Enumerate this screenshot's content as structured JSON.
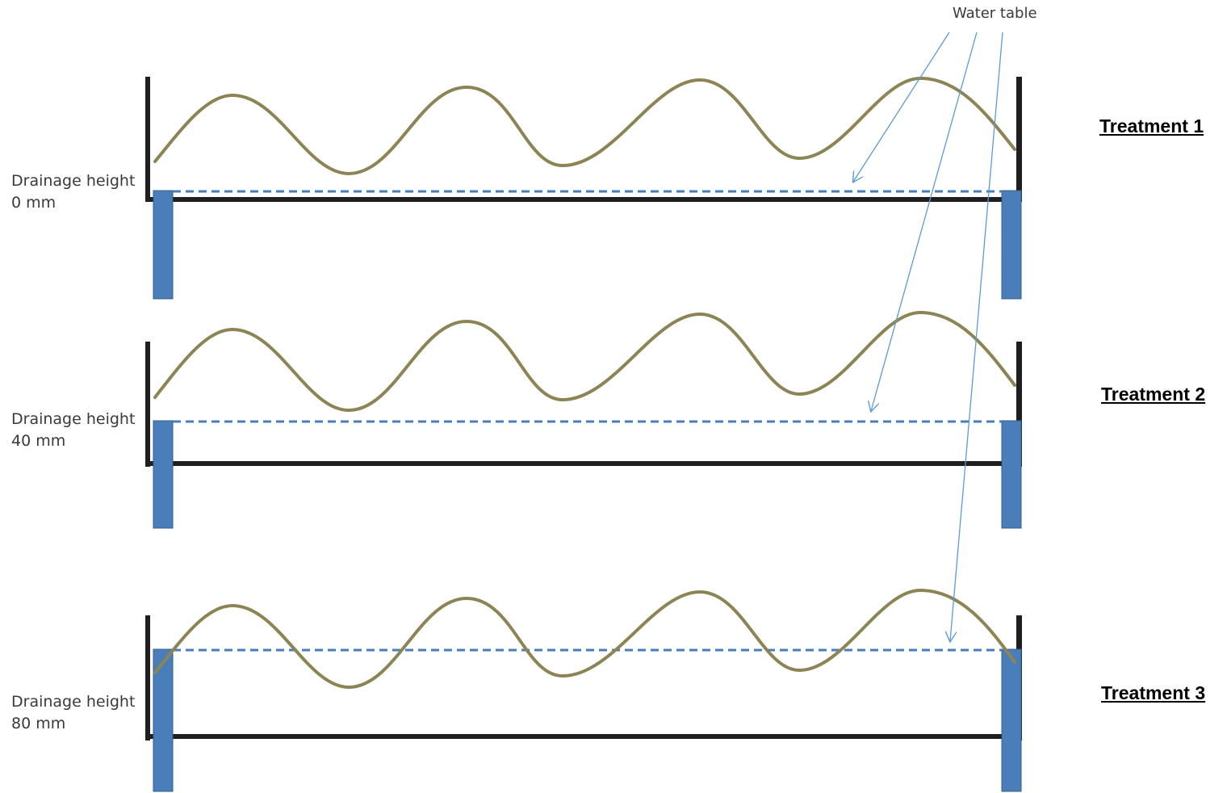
{
  "annotation": {
    "label": "Water table"
  },
  "treatments": [
    {
      "name": "Treatment 1",
      "drainage_label_line1": "Drainage height",
      "drainage_label_line2": "0 mm",
      "drainage_height_mm": 0
    },
    {
      "name": "Treatment 2",
      "drainage_label_line1": "Drainage height",
      "drainage_label_line2": "40 mm",
      "drainage_height_mm": 40
    },
    {
      "name": "Treatment 3",
      "drainage_label_line1": "Drainage height",
      "drainage_label_line2": "80 mm",
      "drainage_height_mm": 80
    }
  ],
  "colors": {
    "frame": "#1f1f1f",
    "drain_pipe": "#4a7ebb",
    "drain_pipe_edge": "#385d8a",
    "water_table": "#4a7ebb",
    "soil_surface": "#8c8455",
    "arrow": "#5b9bd5"
  }
}
